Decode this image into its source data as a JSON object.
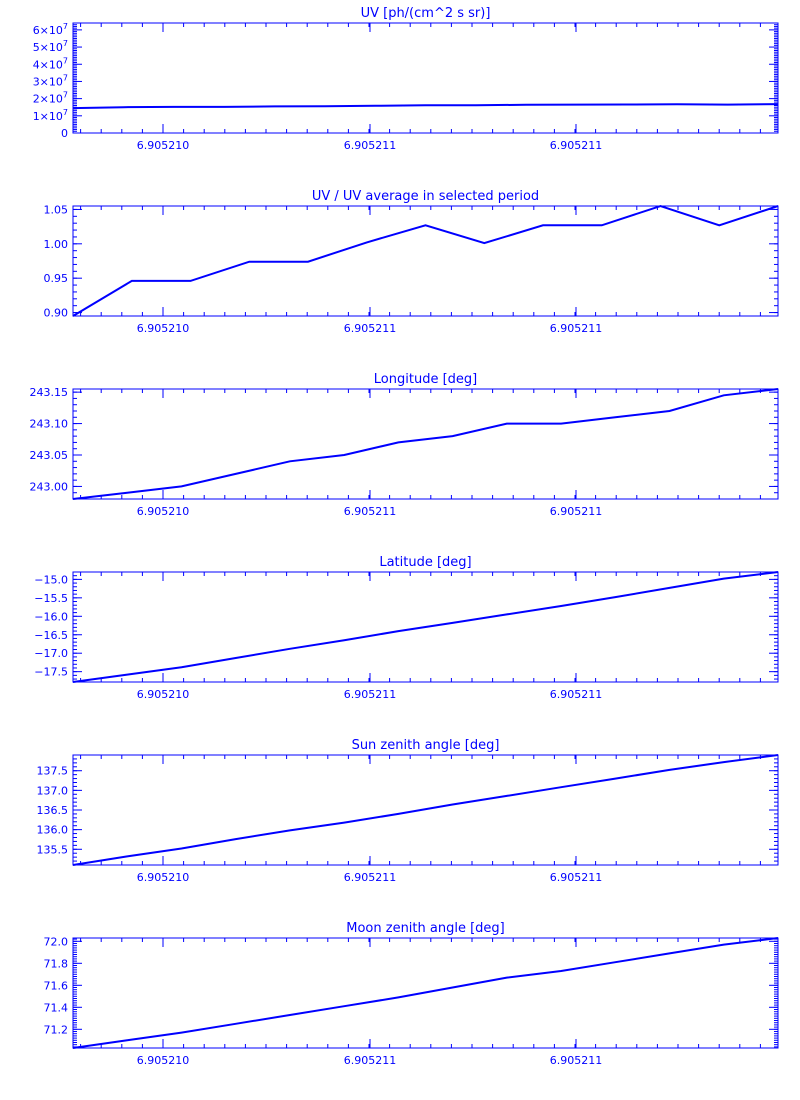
{
  "colors": {
    "ink": "#0000ff",
    "background": "#ffffff"
  },
  "chart_data": [
    {
      "type": "line",
      "title": "UV [ph/(cm^2 s sr)]",
      "xticks": [
        "6.905210",
        "6.905211",
        "6.905211"
      ],
      "yticks": [
        {
          "value": 0,
          "base": "0",
          "exp": ""
        },
        {
          "value": 10000000,
          "base": "1×10",
          "exp": "7"
        },
        {
          "value": 20000000,
          "base": "2×10",
          "exp": "7"
        },
        {
          "value": 30000000,
          "base": "3×10",
          "exp": "7"
        },
        {
          "value": 40000000,
          "base": "4×10",
          "exp": "7"
        },
        {
          "value": 50000000,
          "base": "5×10",
          "exp": "7"
        },
        {
          "value": 60000000,
          "base": "6×10",
          "exp": "7"
        }
      ],
      "ylim": [
        0,
        64000000
      ],
      "y_minor_step": 1000000,
      "values": [
        14500000,
        15000000,
        15200000,
        15200000,
        15500000,
        15600000,
        15800000,
        16100000,
        16200000,
        16400000,
        16500000,
        16600000,
        16700000,
        16500000,
        16800000
      ]
    },
    {
      "type": "line",
      "title": "UV / UV average in selected period",
      "xticks": [
        "6.905210",
        "6.905211",
        "6.905211"
      ],
      "yticks": [
        {
          "value": 0.9,
          "base": "0.90",
          "exp": ""
        },
        {
          "value": 0.95,
          "base": "0.95",
          "exp": ""
        },
        {
          "value": 1.0,
          "base": "1.00",
          "exp": ""
        },
        {
          "value": 1.05,
          "base": "1.05",
          "exp": ""
        }
      ],
      "ylim": [
        0.895,
        1.055
      ],
      "y_minor_step": 0.01,
      "values": [
        0.895,
        0.946,
        0.946,
        0.974,
        0.974,
        1.002,
        1.027,
        1.001,
        1.027,
        1.027,
        1.055,
        1.027,
        1.055
      ]
    },
    {
      "type": "line",
      "title": "Longitude [deg]",
      "xticks": [
        "6.905210",
        "6.905211",
        "6.905211"
      ],
      "yticks": [
        {
          "value": 243.0,
          "base": "243.00",
          "exp": ""
        },
        {
          "value": 243.05,
          "base": "243.05",
          "exp": ""
        },
        {
          "value": 243.1,
          "base": "243.10",
          "exp": ""
        },
        {
          "value": 243.15,
          "base": "243.15",
          "exp": ""
        }
      ],
      "ylim": [
        242.98,
        243.155
      ],
      "y_minor_step": 0.01,
      "values": [
        242.98,
        242.99,
        243.0,
        243.02,
        243.04,
        243.05,
        243.07,
        243.08,
        243.1,
        243.1,
        243.11,
        243.12,
        243.145,
        243.155
      ]
    },
    {
      "type": "line",
      "title": "Latitude [deg]",
      "xticks": [
        "6.905210",
        "6.905211",
        "6.905211"
      ],
      "yticks": [
        {
          "value": -17.5,
          "base": "−17.5",
          "exp": ""
        },
        {
          "value": -17.0,
          "base": "−17.0",
          "exp": ""
        },
        {
          "value": -16.5,
          "base": "−16.5",
          "exp": ""
        },
        {
          "value": -16.0,
          "base": "−16.0",
          "exp": ""
        },
        {
          "value": -15.5,
          "base": "−15.5",
          "exp": ""
        },
        {
          "value": -15.0,
          "base": "−15.0",
          "exp": ""
        }
      ],
      "ylim": [
        -17.78,
        -14.8
      ],
      "y_minor_step": 0.1,
      "values": [
        -17.78,
        -17.58,
        -17.38,
        -17.13,
        -16.88,
        -16.65,
        -16.4,
        -16.18,
        -15.95,
        -15.72,
        -15.48,
        -15.23,
        -14.98,
        -14.8
      ]
    },
    {
      "type": "line",
      "title": "Sun zenith angle [deg]",
      "xticks": [
        "6.905210",
        "6.905211",
        "6.905211"
      ],
      "yticks": [
        {
          "value": 135.5,
          "base": "135.5",
          "exp": ""
        },
        {
          "value": 136.0,
          "base": "136.0",
          "exp": ""
        },
        {
          "value": 136.5,
          "base": "136.5",
          "exp": ""
        },
        {
          "value": 137.0,
          "base": "137.0",
          "exp": ""
        },
        {
          "value": 137.5,
          "base": "137.5",
          "exp": ""
        }
      ],
      "ylim": [
        135.1,
        137.9
      ],
      "y_minor_step": 0.1,
      "values": [
        135.1,
        135.32,
        135.52,
        135.76,
        135.98,
        136.18,
        136.4,
        136.64,
        136.86,
        137.08,
        137.3,
        137.52,
        137.72,
        137.9
      ]
    },
    {
      "type": "line",
      "title": "Moon zenith angle [deg]",
      "xticks": [
        "6.905210",
        "6.905211",
        "6.905211"
      ],
      "yticks": [
        {
          "value": 71.2,
          "base": "71.2",
          "exp": ""
        },
        {
          "value": 71.4,
          "base": "71.4",
          "exp": ""
        },
        {
          "value": 71.6,
          "base": "71.6",
          "exp": ""
        },
        {
          "value": 71.8,
          "base": "71.8",
          "exp": ""
        },
        {
          "value": 72.0,
          "base": "72.0",
          "exp": ""
        }
      ],
      "ylim": [
        71.03,
        72.03
      ],
      "y_minor_step": 0.02,
      "values": [
        71.03,
        71.1,
        71.17,
        71.25,
        71.33,
        71.41,
        71.49,
        71.58,
        71.67,
        71.73,
        71.81,
        71.89,
        71.97,
        72.03
      ]
    }
  ]
}
